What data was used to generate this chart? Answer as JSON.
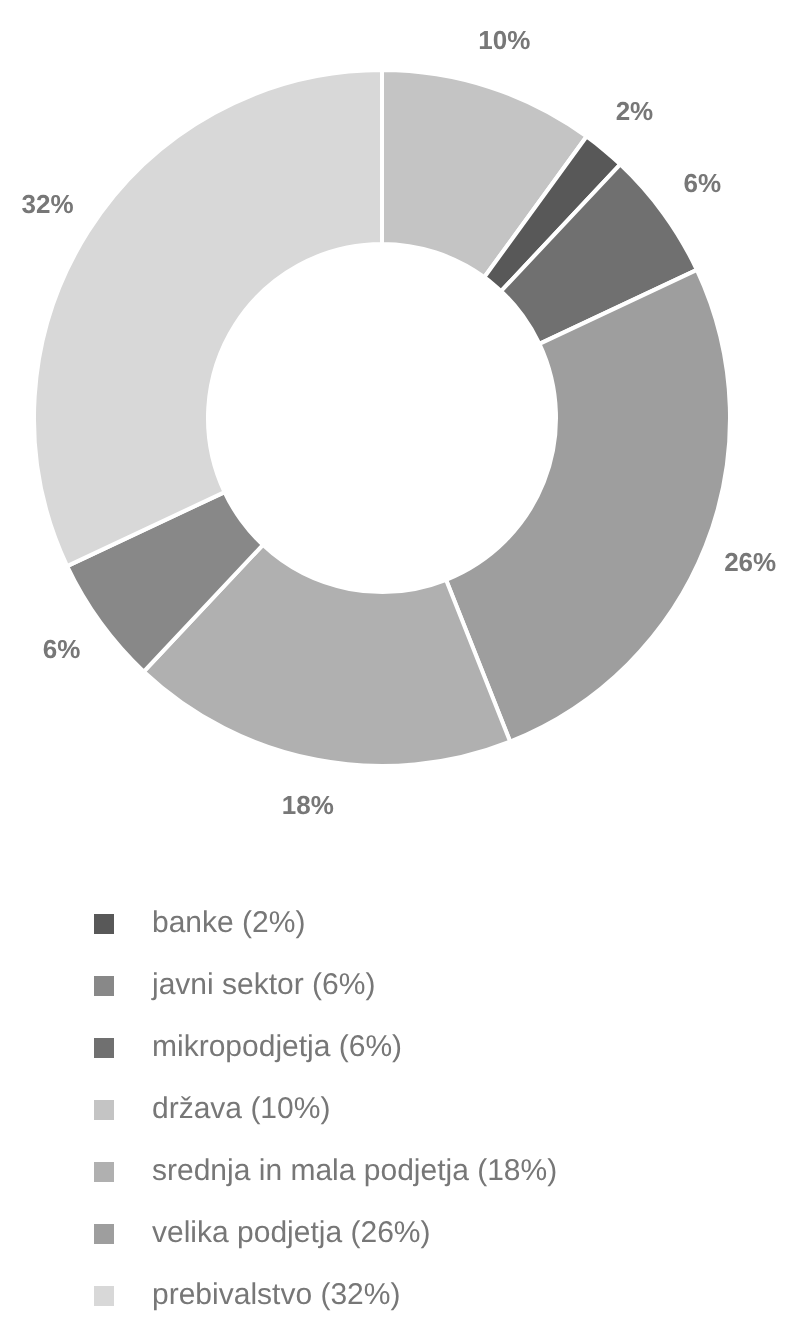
{
  "chart_data": {
    "type": "donut",
    "categories": [
      "država (10%)",
      "banke (2%)",
      "mikropodjetja (6%)",
      "velika podjetja (26%)",
      "srednja in mala podjetja (18%)",
      "javni sektor (6%)",
      "prebivalstvo (32%)"
    ],
    "values": [
      10,
      2,
      6,
      26,
      18,
      6,
      32
    ],
    "colors": [
      "#c4c4c4",
      "#585858",
      "#707070",
      "#9e9e9e",
      "#b0b0b0",
      "#888888",
      "#d8d8d8"
    ],
    "value_labels": [
      "10%",
      "2%",
      "6%",
      "26%",
      "18%",
      "6%",
      "32%"
    ],
    "legend": "bottom"
  }
}
